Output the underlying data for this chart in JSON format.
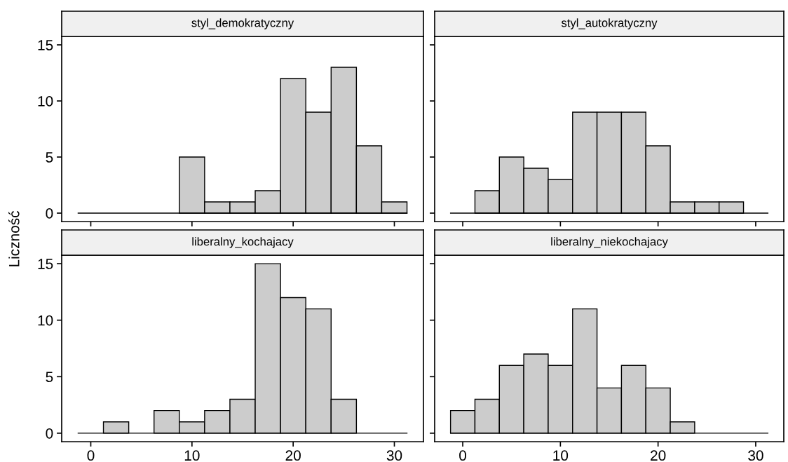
{
  "chart_data": [
    {
      "type": "histogram",
      "title": "styl_demokratyczny",
      "ylabel": "Liczność",
      "bins": [
        -1.25,
        1.25,
        3.75,
        6.25,
        8.75,
        11.25,
        13.75,
        16.25,
        18.75,
        21.25,
        23.75,
        26.25,
        28.75,
        31.25
      ],
      "values": [
        0,
        0,
        0,
        0,
        5,
        1,
        1,
        2,
        12,
        9,
        13,
        6,
        1
      ],
      "color": "#cccccc",
      "xlim": [
        -2.875,
        32.875
      ],
      "ylim": [
        -0.75,
        15.75
      ],
      "xticks": [
        0,
        10,
        20,
        30
      ],
      "yticks": [
        0,
        5,
        10,
        15
      ],
      "tick_labels": "y"
    },
    {
      "type": "histogram",
      "title": "styl_autokratyczny",
      "bins": [
        -1.25,
        1.25,
        3.75,
        6.25,
        8.75,
        11.25,
        13.75,
        16.25,
        18.75,
        21.25,
        23.75,
        26.25,
        28.75,
        31.25
      ],
      "values": [
        0,
        2,
        5,
        4,
        3,
        9,
        9,
        9,
        6,
        1,
        1,
        1,
        0
      ],
      "color": "#cccccc",
      "xlim": [
        -2.875,
        32.875
      ],
      "ylim": [
        -0.75,
        15.75
      ],
      "xticks": [
        0,
        10,
        20,
        30
      ],
      "yticks": [
        0,
        5,
        10,
        15
      ],
      "tick_labels": false
    },
    {
      "type": "histogram",
      "title": "liberalny_kochajacy",
      "bins": [
        -1.25,
        1.25,
        3.75,
        6.25,
        8.75,
        11.25,
        13.75,
        16.25,
        18.75,
        21.25,
        23.75,
        26.25,
        28.75,
        31.25
      ],
      "values": [
        0,
        1,
        0,
        2,
        1,
        2,
        3,
        15,
        12,
        11,
        3,
        0,
        0
      ],
      "color": "#cccccc",
      "xlim": [
        -2.875,
        32.875
      ],
      "ylim": [
        -0.75,
        15.75
      ],
      "xticks": [
        0,
        10,
        20,
        30
      ],
      "yticks": [
        0,
        5,
        10,
        15
      ]
    },
    {
      "type": "histogram",
      "title": "liberalny_niekochajacy",
      "bins": [
        -1.25,
        1.25,
        3.75,
        6.25,
        8.75,
        11.25,
        13.75,
        16.25,
        18.75,
        21.25,
        23.75,
        26.25,
        28.75,
        31.25
      ],
      "values": [
        2,
        3,
        6,
        7,
        6,
        11,
        4,
        6,
        4,
        1,
        0,
        0,
        0
      ],
      "color": "#cccccc",
      "xlim": [
        -2.875,
        32.875
      ],
      "ylim": [
        -0.75,
        15.75
      ],
      "xticks": [
        0,
        10,
        20,
        30
      ],
      "yticks": [
        0,
        5,
        10,
        15
      ],
      "tick_labels": "x"
    }
  ]
}
